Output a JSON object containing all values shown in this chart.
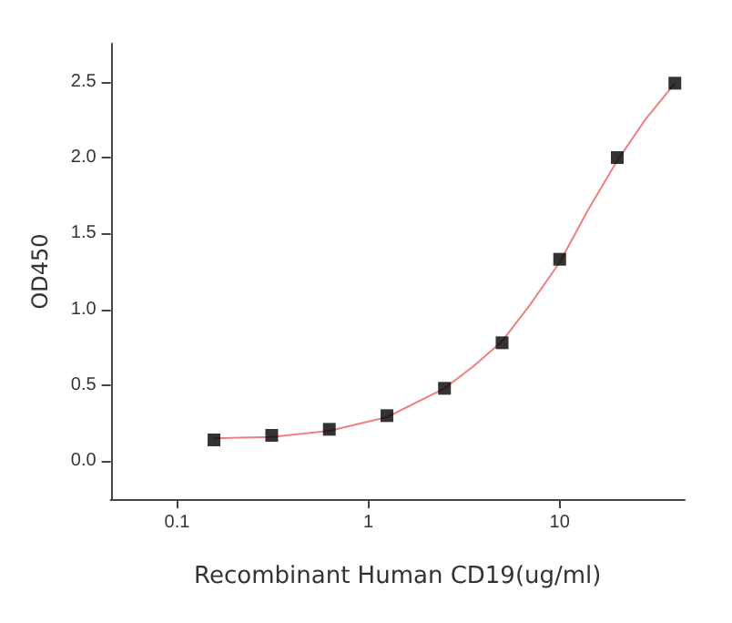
{
  "chart_data": {
    "type": "scatter",
    "xlabel": "Recombinant Human CD19(ug/ml)",
    "ylabel": "OD450",
    "log": "x",
    "xlim": [
      0.045,
      45
    ],
    "xticks": [
      0.1,
      1,
      10
    ],
    "ylim": [
      -0.25,
      2.75
    ],
    "yticks": [
      {
        "value": 0,
        "label": "0.0"
      },
      0.5,
      {
        "value": 1,
        "label": "1.0"
      },
      1.5,
      {
        "value": 2,
        "label": "2.0"
      },
      2.5
    ],
    "grid": false,
    "marker": "square",
    "series": [
      {
        "color": "#000000",
        "x": [
          0.156,
          0.3125,
          0.625,
          1.25,
          2.5,
          5,
          10,
          20,
          40
        ],
        "values": [
          0.14,
          0.17,
          0.21,
          0.3,
          0.48,
          0.78,
          1.33,
          2.0,
          2.49
        ]
      },
      {
        "type": "line",
        "color": "#f08080",
        "marker": "none",
        "line_style": "solid",
        "x": [
          0.156,
          0.3125,
          0.625,
          1.25,
          2.5,
          3.5,
          5,
          7,
          10,
          14,
          20,
          28,
          40
        ],
        "values": [
          0.15,
          0.16,
          0.2,
          0.29,
          0.48,
          0.62,
          0.79,
          1.03,
          1.31,
          1.65,
          1.98,
          2.25,
          2.49
        ]
      }
    ]
  }
}
